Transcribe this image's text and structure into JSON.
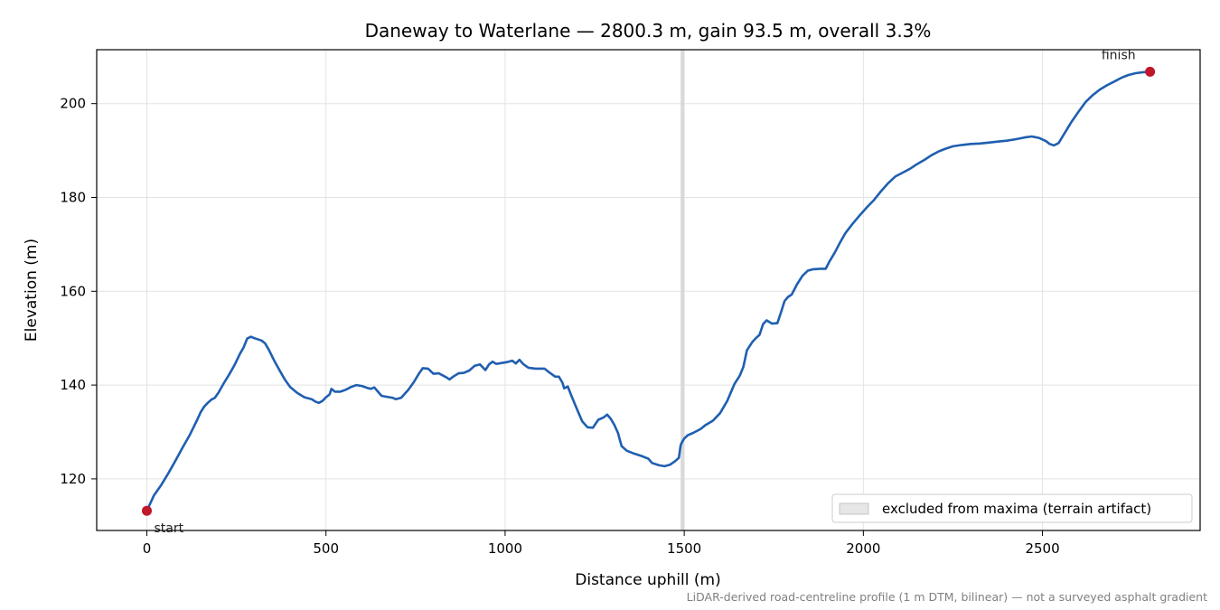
{
  "chart_data": {
    "type": "line",
    "title": "Daneway to Waterlane — 2800.3 m, gain 93.5 m, overall 3.3%",
    "xlabel": "Distance uphill (m)",
    "ylabel": "Elevation (m)",
    "xlim": [
      -140,
      2940
    ],
    "ylim": [
      109,
      211.5
    ],
    "xticks": [
      0,
      500,
      1000,
      1500,
      2000,
      2500
    ],
    "yticks": [
      120,
      140,
      160,
      180,
      200
    ],
    "grid": true,
    "legend_placement": "lower-right",
    "colors": {
      "line": "#1f5fb0",
      "endpoint": "#c0182a",
      "excluded_band": "#d3d3d3"
    },
    "series": [
      {
        "values": [
          [
            0,
            113.2
          ],
          [
            20,
            116.5
          ],
          [
            40,
            118.7
          ],
          [
            60,
            121.2
          ],
          [
            80,
            123.9
          ],
          [
            100,
            126.7
          ],
          [
            120,
            129.4
          ],
          [
            140,
            132.5
          ],
          [
            150,
            134.2
          ],
          [
            160,
            135.4
          ],
          [
            170,
            136.2
          ],
          [
            180,
            136.9
          ],
          [
            190,
            137.3
          ],
          [
            200,
            138.4
          ],
          [
            215,
            140.4
          ],
          [
            230,
            142.3
          ],
          [
            245,
            144.3
          ],
          [
            260,
            146.7
          ],
          [
            270,
            148.0
          ],
          [
            280,
            149.9
          ],
          [
            290,
            150.3
          ],
          [
            300,
            150.0
          ],
          [
            320,
            149.5
          ],
          [
            330,
            148.9
          ],
          [
            340,
            147.6
          ],
          [
            355,
            145.3
          ],
          [
            370,
            143.2
          ],
          [
            385,
            141.2
          ],
          [
            400,
            139.6
          ],
          [
            420,
            138.3
          ],
          [
            440,
            137.4
          ],
          [
            460,
            137.0
          ],
          [
            470,
            136.5
          ],
          [
            480,
            136.2
          ],
          [
            490,
            136.6
          ],
          [
            500,
            137.4
          ],
          [
            510,
            138.0
          ],
          [
            515,
            139.2
          ],
          [
            525,
            138.6
          ],
          [
            540,
            138.6
          ],
          [
            555,
            139.0
          ],
          [
            570,
            139.6
          ],
          [
            585,
            140.0
          ],
          [
            600,
            139.8
          ],
          [
            615,
            139.4
          ],
          [
            625,
            139.2
          ],
          [
            635,
            139.5
          ],
          [
            645,
            138.6
          ],
          [
            655,
            137.7
          ],
          [
            670,
            137.5
          ],
          [
            685,
            137.3
          ],
          [
            695,
            137.0
          ],
          [
            710,
            137.3
          ],
          [
            730,
            139.0
          ],
          [
            745,
            140.6
          ],
          [
            760,
            142.5
          ],
          [
            770,
            143.6
          ],
          [
            785,
            143.5
          ],
          [
            800,
            142.4
          ],
          [
            815,
            142.5
          ],
          [
            835,
            141.7
          ],
          [
            845,
            141.2
          ],
          [
            855,
            141.8
          ],
          [
            870,
            142.5
          ],
          [
            885,
            142.6
          ],
          [
            900,
            143.1
          ],
          [
            915,
            144.1
          ],
          [
            930,
            144.4
          ],
          [
            945,
            143.2
          ],
          [
            955,
            144.4
          ],
          [
            965,
            145.0
          ],
          [
            975,
            144.5
          ],
          [
            990,
            144.7
          ],
          [
            1005,
            144.9
          ],
          [
            1020,
            145.2
          ],
          [
            1030,
            144.6
          ],
          [
            1040,
            145.4
          ],
          [
            1050,
            144.5
          ],
          [
            1065,
            143.7
          ],
          [
            1085,
            143.5
          ],
          [
            1110,
            143.5
          ],
          [
            1125,
            142.6
          ],
          [
            1140,
            141.8
          ],
          [
            1150,
            141.8
          ],
          [
            1160,
            140.5
          ],
          [
            1165,
            139.3
          ],
          [
            1175,
            139.7
          ],
          [
            1185,
            137.7
          ],
          [
            1200,
            135.0
          ],
          [
            1215,
            132.3
          ],
          [
            1230,
            131.0
          ],
          [
            1245,
            130.9
          ],
          [
            1260,
            132.6
          ],
          [
            1275,
            133.1
          ],
          [
            1285,
            133.7
          ],
          [
            1295,
            132.8
          ],
          [
            1305,
            131.5
          ],
          [
            1315,
            129.8
          ],
          [
            1325,
            127.0
          ],
          [
            1340,
            126.0
          ],
          [
            1360,
            125.4
          ],
          [
            1380,
            124.9
          ],
          [
            1400,
            124.3
          ],
          [
            1410,
            123.4
          ],
          [
            1430,
            122.9
          ],
          [
            1445,
            122.7
          ],
          [
            1460,
            123.0
          ],
          [
            1475,
            123.8
          ],
          [
            1485,
            124.5
          ],
          [
            1490,
            127.2
          ],
          [
            1495,
            128.0
          ],
          [
            1500,
            128.6
          ],
          [
            1510,
            129.3
          ],
          [
            1525,
            129.8
          ],
          [
            1545,
            130.6
          ],
          [
            1560,
            131.5
          ],
          [
            1580,
            132.4
          ],
          [
            1600,
            134.0
          ],
          [
            1620,
            136.6
          ],
          [
            1640,
            140.2
          ],
          [
            1655,
            142.0
          ],
          [
            1665,
            143.9
          ],
          [
            1675,
            147.4
          ],
          [
            1690,
            149.2
          ],
          [
            1700,
            150.0
          ],
          [
            1710,
            150.7
          ],
          [
            1720,
            153.0
          ],
          [
            1730,
            153.8
          ],
          [
            1745,
            153.1
          ],
          [
            1760,
            153.2
          ],
          [
            1770,
            155.5
          ],
          [
            1780,
            157.9
          ],
          [
            1790,
            158.8
          ],
          [
            1800,
            159.3
          ],
          [
            1815,
            161.5
          ],
          [
            1830,
            163.3
          ],
          [
            1845,
            164.4
          ],
          [
            1860,
            164.7
          ],
          [
            1880,
            164.8
          ],
          [
            1895,
            164.8
          ],
          [
            1905,
            166.3
          ],
          [
            1920,
            168.2
          ],
          [
            1935,
            170.4
          ],
          [
            1950,
            172.4
          ],
          [
            1970,
            174.4
          ],
          [
            1990,
            176.2
          ],
          [
            2010,
            177.9
          ],
          [
            2030,
            179.5
          ],
          [
            2050,
            181.4
          ],
          [
            2070,
            183.1
          ],
          [
            2090,
            184.5
          ],
          [
            2110,
            185.3
          ],
          [
            2130,
            186.1
          ],
          [
            2150,
            187.1
          ],
          [
            2170,
            188.0
          ],
          [
            2190,
            189.0
          ],
          [
            2210,
            189.8
          ],
          [
            2230,
            190.4
          ],
          [
            2250,
            190.9
          ],
          [
            2275,
            191.2
          ],
          [
            2300,
            191.4
          ],
          [
            2325,
            191.5
          ],
          [
            2350,
            191.7
          ],
          [
            2375,
            191.9
          ],
          [
            2400,
            192.1
          ],
          [
            2425,
            192.4
          ],
          [
            2450,
            192.8
          ],
          [
            2470,
            193.0
          ],
          [
            2490,
            192.7
          ],
          [
            2510,
            192.0
          ],
          [
            2520,
            191.4
          ],
          [
            2532,
            191.1
          ],
          [
            2545,
            191.6
          ],
          [
            2560,
            193.5
          ],
          [
            2580,
            196.0
          ],
          [
            2600,
            198.2
          ],
          [
            2620,
            200.3
          ],
          [
            2640,
            201.8
          ],
          [
            2660,
            203.0
          ],
          [
            2680,
            203.9
          ],
          [
            2700,
            204.7
          ],
          [
            2720,
            205.5
          ],
          [
            2740,
            206.1
          ],
          [
            2760,
            206.5
          ],
          [
            2780,
            206.7
          ],
          [
            2800.3,
            206.8
          ]
        ]
      }
    ],
    "excluded_band": {
      "x0": 1490,
      "x1": 1500,
      "label": "excluded from maxima (terrain artifact)"
    },
    "annotations": [
      {
        "text": "start",
        "x": 0,
        "y": 113.2
      },
      {
        "text": "finish",
        "x": 2800.3,
        "y": 206.8
      }
    ],
    "footnote": "LiDAR-derived road-centreline profile (1 m DTM, bilinear) — not a surveyed asphalt gradient"
  }
}
